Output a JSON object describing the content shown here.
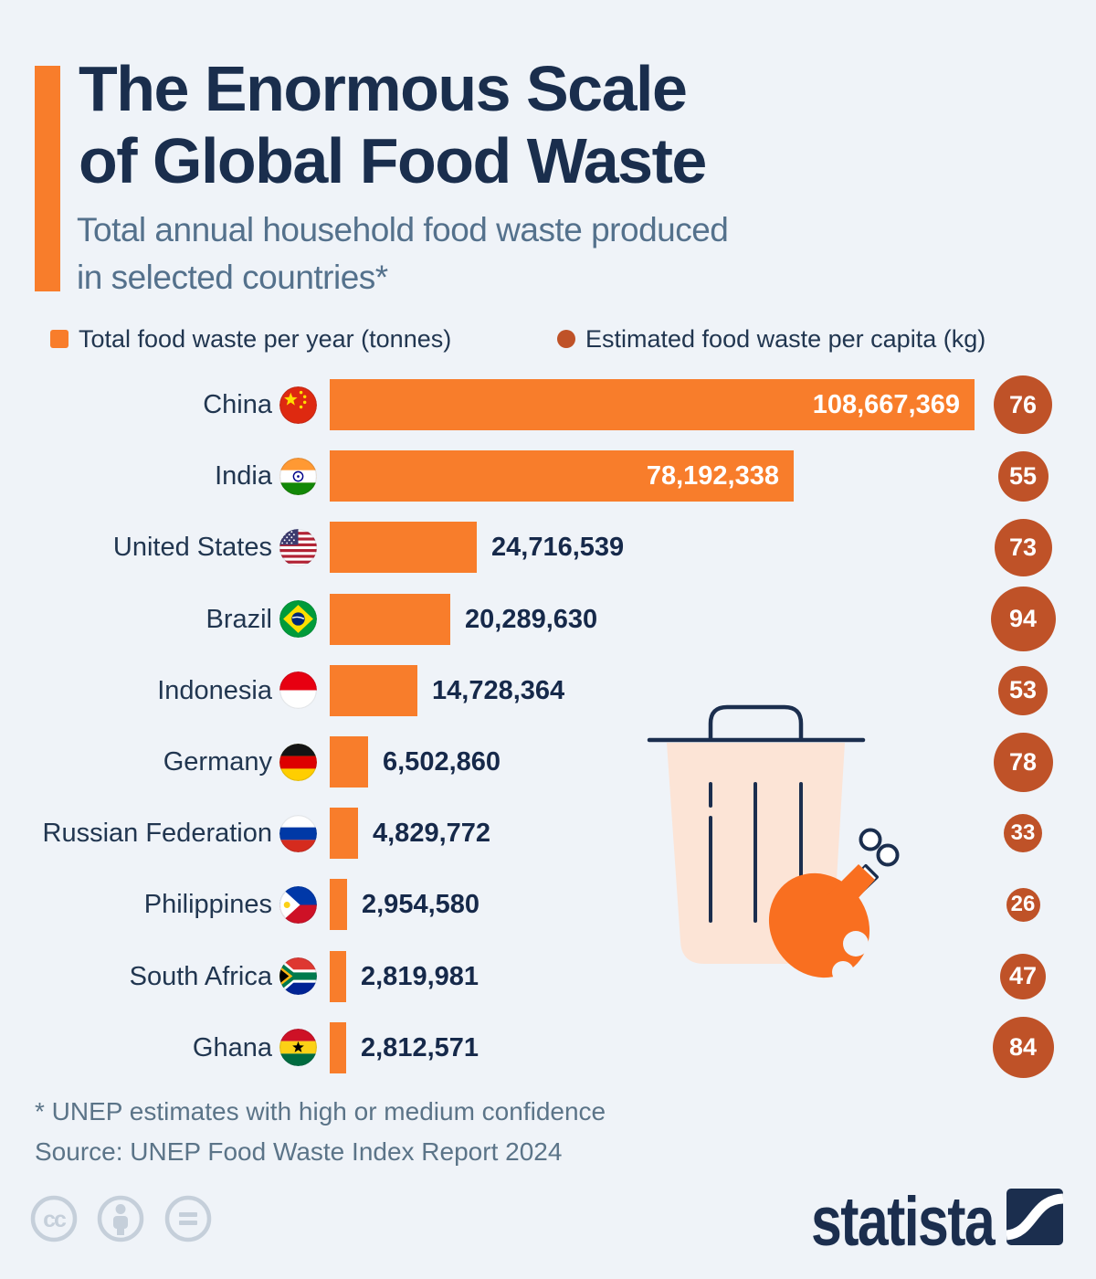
{
  "colors": {
    "background": "#eff3f8",
    "bar_orange": "#f87d2b",
    "capita_rust": "#bf5228",
    "title_navy": "#1a2e4d",
    "text_navy": "#213650",
    "slate": "#54718c",
    "trash_peach": "#fce4d6",
    "drumstick_orange": "#f96f20",
    "footer_gray": "#c5cfda"
  },
  "header": {
    "title_line1": "The Enormous Scale",
    "title_line2": "of Global Food Waste",
    "subtitle_line1": "Total annual household food waste produced",
    "subtitle_line2": "in selected countries*"
  },
  "legend": {
    "tonnes_label": "Total food waste per year (tonnes)",
    "capita_label": "Estimated food waste per capita (kg)"
  },
  "chart_data": {
    "type": "bar",
    "orientation": "horizontal",
    "title": "The Enormous Scale of Global Food Waste",
    "subtitle": "Total annual household food waste produced in selected countries*",
    "categories": [
      "China",
      "India",
      "United States",
      "Brazil",
      "Indonesia",
      "Germany",
      "Russian Federation",
      "Philippines",
      "South Africa",
      "Ghana"
    ],
    "series": [
      {
        "name": "Total food waste per year (tonnes)",
        "values": [
          108667369,
          78192338,
          24716539,
          20289630,
          14728364,
          6502860,
          4829772,
          2954580,
          2819981,
          2812571
        ]
      },
      {
        "name": "Estimated food waste per capita (kg)",
        "values": [
          76,
          55,
          73,
          94,
          53,
          78,
          33,
          26,
          47,
          84
        ]
      }
    ],
    "value_labels": [
      "108,667,369",
      "78,192,338",
      "24,716,539",
      "20,289,630",
      "14,728,364",
      "6,502,860",
      "4,829,772",
      "2,954,580",
      "2,819,981",
      "2,812,571"
    ],
    "xlim": [
      0,
      110000000
    ],
    "grid": false,
    "legend_position": "top"
  },
  "rows": [
    {
      "country": "China",
      "flag": "china",
      "tonnes": 108667369,
      "tonnes_label": "108,667,369",
      "per_capita": 76,
      "label_inside": true
    },
    {
      "country": "India",
      "flag": "india",
      "tonnes": 78192338,
      "tonnes_label": "78,192,338",
      "per_capita": 55,
      "label_inside": true
    },
    {
      "country": "United States",
      "flag": "us",
      "tonnes": 24716539,
      "tonnes_label": "24,716,539",
      "per_capita": 73,
      "label_inside": false
    },
    {
      "country": "Brazil",
      "flag": "brazil",
      "tonnes": 20289630,
      "tonnes_label": "20,289,630",
      "per_capita": 94,
      "label_inside": false
    },
    {
      "country": "Indonesia",
      "flag": "indonesia",
      "tonnes": 14728364,
      "tonnes_label": "14,728,364",
      "per_capita": 53,
      "label_inside": false
    },
    {
      "country": "Germany",
      "flag": "germany",
      "tonnes": 6502860,
      "tonnes_label": "6,502,860",
      "per_capita": 78,
      "label_inside": false
    },
    {
      "country": "Russian Federation",
      "flag": "russia",
      "tonnes": 4829772,
      "tonnes_label": "4,829,772",
      "per_capita": 33,
      "label_inside": false
    },
    {
      "country": "Philippines",
      "flag": "philippines",
      "tonnes": 2954580,
      "tonnes_label": "2,954,580",
      "per_capita": 26,
      "label_inside": false
    },
    {
      "country": "South Africa",
      "flag": "south-africa",
      "tonnes": 2819981,
      "tonnes_label": "2,819,981",
      "per_capita": 47,
      "label_inside": false
    },
    {
      "country": "Ghana",
      "flag": "ghana",
      "tonnes": 2812571,
      "tonnes_label": "2,812,571",
      "per_capita": 84,
      "label_inside": false
    }
  ],
  "notes": {
    "footnote": "* UNEP estimates with high or medium confidence",
    "source": "Source: UNEP Food Waste Index Report 2024"
  },
  "footer": {
    "brand": "statista",
    "license_icons": [
      "cc-icon",
      "attribution-icon",
      "no-derivatives-icon"
    ]
  }
}
